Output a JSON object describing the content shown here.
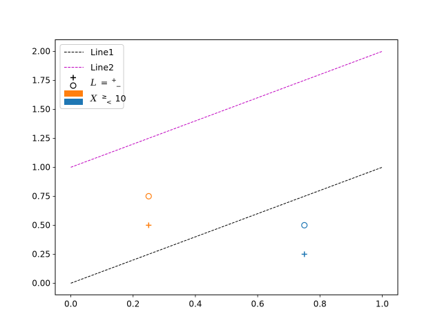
{
  "chart_data": {
    "type": "line",
    "title": "",
    "xlabel": "",
    "ylabel": "",
    "xlim": [
      -0.05,
      1.05
    ],
    "ylim": [
      -0.1,
      2.1
    ],
    "x_ticks": [
      0.0,
      0.2,
      0.4,
      0.6,
      0.8,
      1.0
    ],
    "x_tick_labels": [
      "0.0",
      "0.2",
      "0.4",
      "0.6",
      "0.8",
      "1.0"
    ],
    "y_ticks": [
      0.0,
      0.25,
      0.5,
      0.75,
      1.0,
      1.25,
      1.5,
      1.75,
      2.0
    ],
    "y_tick_labels": [
      "0.00",
      "0.25",
      "0.50",
      "0.75",
      "1.00",
      "1.25",
      "1.50",
      "1.75",
      "2.00"
    ],
    "grid": false,
    "legend_position": "upper-left",
    "lines": [
      {
        "name": "Line1",
        "x": [
          0,
          1
        ],
        "y": [
          0,
          1
        ],
        "color": "#000000",
        "style": "dashed"
      },
      {
        "name": "Line2",
        "x": [
          0,
          1
        ],
        "y": [
          1,
          2
        ],
        "color": "#bf00bf",
        "style": "dashed"
      }
    ],
    "point_groups": [
      {
        "color": "#1f77b4",
        "points": [
          {
            "x": 0.75,
            "y": 0.25,
            "marker": "plus"
          },
          {
            "x": 0.75,
            "y": 0.5,
            "marker": "circle"
          }
        ]
      },
      {
        "color": "#ff7f0e",
        "points": [
          {
            "x": 0.25,
            "y": 0.5,
            "marker": "plus"
          },
          {
            "x": 0.25,
            "y": 0.75,
            "marker": "circle"
          }
        ]
      }
    ],
    "legend": [
      {
        "kind": "line",
        "label": "Line1",
        "color": "#000000"
      },
      {
        "kind": "line",
        "label": "Line2",
        "color": "#bf00bf"
      },
      {
        "kind": "markers",
        "color": "#000000",
        "label_parts": {
          "var": "L",
          "eq": " = ",
          "top": "+",
          "bottom": "−"
        }
      },
      {
        "kind": "patches",
        "colors": [
          "#ff7f0e",
          "#1f77b4"
        ],
        "label_parts": {
          "var": "X",
          "top": "≥",
          "bottom": "<",
          "rest": " 10"
        }
      }
    ]
  }
}
